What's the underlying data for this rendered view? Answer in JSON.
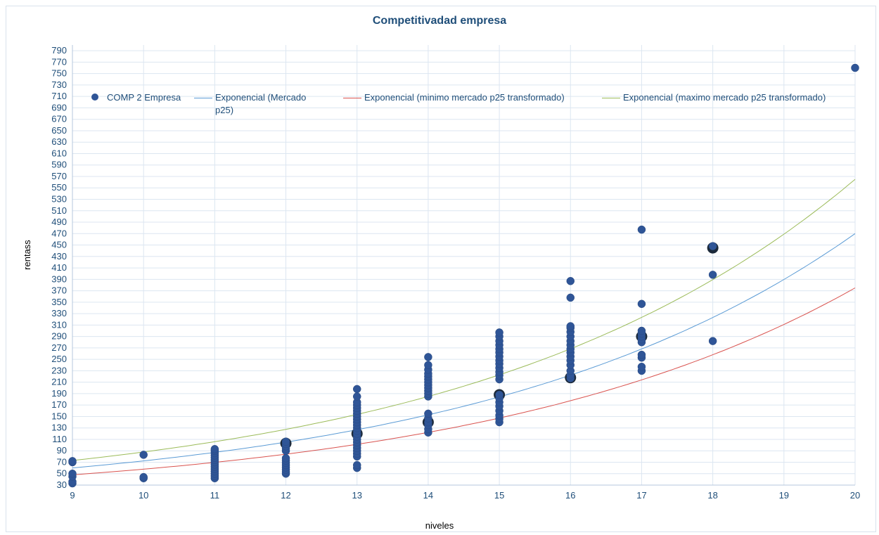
{
  "chart_data": {
    "type": "scatter",
    "title": "Competitivadad empresa",
    "xlabel": "niveles",
    "ylabel": "rentass",
    "xlim": [
      9,
      20
    ],
    "ylim": [
      30,
      800
    ],
    "xticks": [
      9,
      10,
      11,
      12,
      13,
      14,
      15,
      16,
      17,
      18,
      19,
      20
    ],
    "yticks": [
      30,
      50,
      70,
      90,
      110,
      130,
      150,
      170,
      190,
      210,
      230,
      250,
      270,
      290,
      310,
      330,
      350,
      370,
      390,
      410,
      430,
      450,
      470,
      490,
      510,
      530,
      550,
      570,
      590,
      610,
      630,
      650,
      670,
      690,
      710,
      730,
      750,
      770,
      790
    ],
    "grid": true,
    "legend_position": "top",
    "series": [
      {
        "name": "COMP 2 Empresa",
        "kind": "scatter",
        "color": "#2f5597",
        "points": [
          [
            9,
            33
          ],
          [
            9,
            36
          ],
          [
            9,
            45
          ],
          [
            9,
            50
          ],
          [
            9,
            70
          ],
          [
            9,
            72
          ],
          [
            10,
            42
          ],
          [
            10,
            44
          ],
          [
            10,
            83
          ],
          [
            11,
            42
          ],
          [
            11,
            46
          ],
          [
            11,
            50
          ],
          [
            11,
            54
          ],
          [
            11,
            58
          ],
          [
            11,
            62
          ],
          [
            11,
            66
          ],
          [
            11,
            70
          ],
          [
            11,
            74
          ],
          [
            11,
            78
          ],
          [
            11,
            82
          ],
          [
            11,
            86
          ],
          [
            11,
            90
          ],
          [
            11,
            93
          ],
          [
            12,
            50
          ],
          [
            12,
            53
          ],
          [
            12,
            57
          ],
          [
            12,
            61
          ],
          [
            12,
            65
          ],
          [
            12,
            69
          ],
          [
            12,
            73
          ],
          [
            12,
            77
          ],
          [
            12,
            90
          ],
          [
            12,
            94
          ],
          [
            12,
            98
          ],
          [
            12,
            102
          ],
          [
            12,
            106
          ],
          [
            13,
            60
          ],
          [
            13,
            65
          ],
          [
            13,
            80
          ],
          [
            13,
            85
          ],
          [
            13,
            90
          ],
          [
            13,
            95
          ],
          [
            13,
            100
          ],
          [
            13,
            105
          ],
          [
            13,
            110
          ],
          [
            13,
            115
          ],
          [
            13,
            120
          ],
          [
            13,
            125
          ],
          [
            13,
            130
          ],
          [
            13,
            135
          ],
          [
            13,
            140
          ],
          [
            13,
            145
          ],
          [
            13,
            150
          ],
          [
            13,
            155
          ],
          [
            13,
            160
          ],
          [
            13,
            165
          ],
          [
            13,
            170
          ],
          [
            13,
            175
          ],
          [
            13,
            185
          ],
          [
            13,
            198
          ],
          [
            14,
            122
          ],
          [
            14,
            128
          ],
          [
            14,
            135
          ],
          [
            14,
            140
          ],
          [
            14,
            147
          ],
          [
            14,
            155
          ],
          [
            14,
            185
          ],
          [
            14,
            190
          ],
          [
            14,
            195
          ],
          [
            14,
            200
          ],
          [
            14,
            205
          ],
          [
            14,
            210
          ],
          [
            14,
            215
          ],
          [
            14,
            220
          ],
          [
            14,
            225
          ],
          [
            14,
            232
          ],
          [
            14,
            240
          ],
          [
            14,
            254
          ],
          [
            15,
            140
          ],
          [
            15,
            146
          ],
          [
            15,
            152
          ],
          [
            15,
            160
          ],
          [
            15,
            168
          ],
          [
            15,
            175
          ],
          [
            15,
            182
          ],
          [
            15,
            188
          ],
          [
            15,
            215
          ],
          [
            15,
            222
          ],
          [
            15,
            228
          ],
          [
            15,
            235
          ],
          [
            15,
            242
          ],
          [
            15,
            248
          ],
          [
            15,
            255
          ],
          [
            15,
            262
          ],
          [
            15,
            268
          ],
          [
            15,
            275
          ],
          [
            15,
            282
          ],
          [
            15,
            290
          ],
          [
            15,
            297
          ],
          [
            16,
            217
          ],
          [
            16,
            222
          ],
          [
            16,
            230
          ],
          [
            16,
            240
          ],
          [
            16,
            248
          ],
          [
            16,
            255
          ],
          [
            16,
            262
          ],
          [
            16,
            268
          ],
          [
            16,
            275
          ],
          [
            16,
            282
          ],
          [
            16,
            290
          ],
          [
            16,
            298
          ],
          [
            16,
            305
          ],
          [
            16,
            308
          ],
          [
            16,
            358
          ],
          [
            16,
            387
          ],
          [
            17,
            230
          ],
          [
            17,
            237
          ],
          [
            17,
            253
          ],
          [
            17,
            258
          ],
          [
            17,
            280
          ],
          [
            17,
            285
          ],
          [
            17,
            290
          ],
          [
            17,
            295
          ],
          [
            17,
            300
          ],
          [
            17,
            347
          ],
          [
            17,
            477
          ],
          [
            18,
            282
          ],
          [
            18,
            398
          ],
          [
            18,
            448
          ],
          [
            20,
            760
          ]
        ]
      },
      {
        "name": "Exponencial (Mercado p25)",
        "kind": "exp-trendline",
        "color": "#5b9bd5",
        "y_at_x_min": 60,
        "y_at_x_max": 470
      },
      {
        "name": "Exponencial (minimo mercado p25 transformado)",
        "kind": "exp-trendline",
        "color": "#d9534f",
        "y_at_x_min": 48,
        "y_at_x_max": 375
      },
      {
        "name": "Exponencial (maximo mercado p25 transformado)",
        "kind": "exp-trendline",
        "color": "#9bbb59",
        "y_at_x_min": 73,
        "y_at_x_max": 565
      }
    ],
    "highlight_points": [
      [
        12,
        103
      ],
      [
        13,
        120
      ],
      [
        14,
        140
      ],
      [
        15,
        188
      ],
      [
        16,
        218
      ],
      [
        17,
        290
      ],
      [
        18,
        445
      ]
    ]
  }
}
